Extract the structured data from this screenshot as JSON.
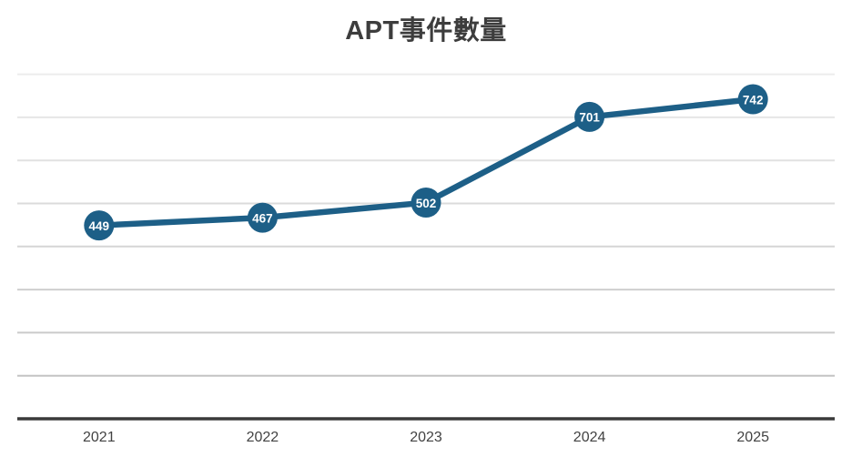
{
  "chart_data": {
    "type": "line",
    "title": "APT事件數量",
    "categories": [
      "2021",
      "2022",
      "2023",
      "2024",
      "2025"
    ],
    "values": [
      449,
      467,
      502,
      701,
      742
    ],
    "xlabel": "",
    "ylabel": "",
    "ylim": [
      0,
      870
    ],
    "grid": true,
    "grid_step": 100,
    "grid_min": 100,
    "grid_max": 800,
    "legend": "none",
    "y_tick_labels_visible": false,
    "colors": {
      "line": "#1d5f87",
      "marker": "#1d5f87",
      "marker_label": "#ffffff",
      "axis": "#3a3a3a",
      "tick_text": "#424242",
      "title_text": "#3d3d3d",
      "grid_light": "#ececec",
      "grid_dark": "#c4c4c4"
    }
  }
}
